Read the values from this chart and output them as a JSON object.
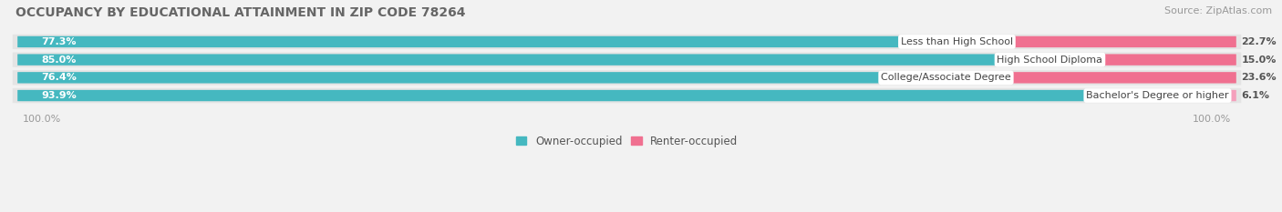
{
  "title": "OCCUPANCY BY EDUCATIONAL ATTAINMENT IN ZIP CODE 78264",
  "source": "Source: ZipAtlas.com",
  "categories": [
    "Less than High School",
    "High School Diploma",
    "College/Associate Degree",
    "Bachelor's Degree or higher"
  ],
  "owner_values": [
    77.3,
    85.0,
    76.4,
    93.9
  ],
  "renter_values": [
    22.7,
    15.0,
    23.6,
    6.1
  ],
  "owner_color": "#45B8C0",
  "renter_color_1": "#F07090",
  "renter_color_2": "#F07090",
  "renter_color_3": "#F07090",
  "renter_color_4": "#F5A0BC",
  "background_color": "#f2f2f2",
  "row_bg_color": "#e4e4e4",
  "title_fontsize": 10,
  "source_fontsize": 8,
  "bar_label_fontsize": 8,
  "cat_label_fontsize": 8,
  "legend_fontsize": 8.5,
  "footer_fontsize": 8
}
